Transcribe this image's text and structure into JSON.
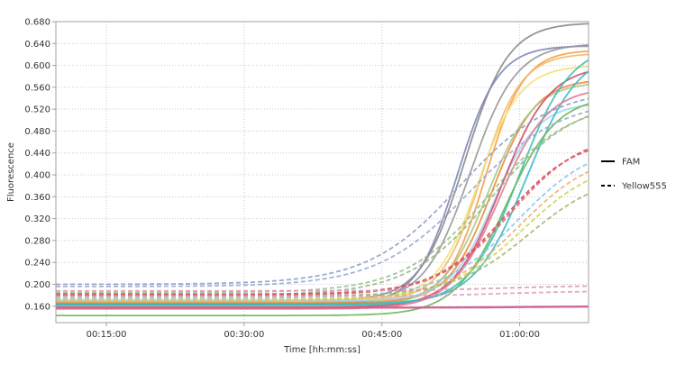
{
  "chart_data": {
    "type": "line",
    "xlabel": "Time [hh:mm:ss]",
    "ylabel": "Fluorescence",
    "ylim": [
      0.13,
      0.68
    ],
    "xlim_min": [
      9.5,
      67.5
    ],
    "grid": true,
    "legend_position": "right",
    "y_ticks": [
      "0.160",
      "0.200",
      "0.240",
      "0.280",
      "0.320",
      "0.360",
      "0.400",
      "0.440",
      "0.480",
      "0.520",
      "0.560",
      "0.600",
      "0.640",
      "0.680"
    ],
    "y_tick_values": [
      0.16,
      0.2,
      0.24,
      0.28,
      0.32,
      0.36,
      0.4,
      0.44,
      0.48,
      0.52,
      0.56,
      0.6,
      0.64,
      0.68
    ],
    "x_ticks": [
      "00:15:00",
      "00:30:00",
      "00:45:00",
      "01:00:00"
    ],
    "x_tick_minutes": [
      15,
      30,
      45,
      60
    ],
    "legend": [
      {
        "label": "FAM",
        "style": "solid"
      },
      {
        "label": "Yellow555",
        "style": "dashed"
      }
    ],
    "series": [
      {
        "group": "FAM",
        "color": "#8a8a8a",
        "base": 0.17,
        "top": 0.678,
        "mid": 54.0,
        "k": 0.42
      },
      {
        "group": "FAM",
        "color": "#8087b8",
        "base": 0.163,
        "top": 0.636,
        "mid": 53.2,
        "k": 0.45
      },
      {
        "group": "FAM",
        "color": "#999999",
        "base": 0.166,
        "top": 0.64,
        "mid": 54.6,
        "k": 0.4
      },
      {
        "group": "FAM",
        "color": "#f5a048",
        "base": 0.168,
        "top": 0.628,
        "mid": 56.3,
        "k": 0.48
      },
      {
        "group": "FAM",
        "color": "#f3b86a",
        "base": 0.17,
        "top": 0.622,
        "mid": 55.8,
        "k": 0.46
      },
      {
        "group": "FAM",
        "color": "#f5e07a",
        "base": 0.172,
        "top": 0.6,
        "mid": 55.5,
        "k": 0.44
      },
      {
        "group": "FAM",
        "color": "#f08a3a",
        "base": 0.165,
        "top": 0.575,
        "mid": 57.0,
        "k": 0.42
      },
      {
        "group": "FAM",
        "color": "#a9c98a",
        "base": 0.16,
        "top": 0.57,
        "mid": 56.5,
        "k": 0.4
      },
      {
        "group": "FAM",
        "color": "#a0d8ee",
        "base": 0.17,
        "top": 0.532,
        "mid": 57.2,
        "k": 0.42
      },
      {
        "group": "FAM",
        "color": "#d54a6a",
        "base": 0.158,
        "top": 0.6,
        "mid": 58.0,
        "k": 0.38
      },
      {
        "group": "FAM",
        "color": "#3cc0b4",
        "base": 0.162,
        "top": 0.64,
        "mid": 60.0,
        "k": 0.36
      },
      {
        "group": "FAM",
        "color": "#3bb8c8",
        "base": 0.164,
        "top": 0.63,
        "mid": 60.8,
        "k": 0.35
      },
      {
        "group": "FAM",
        "color": "#6bb85a",
        "base": 0.143,
        "top": 0.545,
        "mid": 58.5,
        "k": 0.36
      },
      {
        "group": "FAM",
        "color": "#e07a90",
        "base": 0.155,
        "top": 0.56,
        "mid": 57.8,
        "k": 0.38
      },
      {
        "group": "FAM",
        "color": "#c96aa8",
        "base": 0.158,
        "top": 0.16,
        "mid": 60.0,
        "k": 0.3
      },
      {
        "group": "FAM",
        "color": "#d45a8a",
        "base": 0.157,
        "top": 0.159,
        "mid": 60.0,
        "k": 0.3
      },
      {
        "group": "Yellow555",
        "color": "#8fa0c8",
        "base": 0.2,
        "top": 0.56,
        "mid": 53.5,
        "k": 0.2
      },
      {
        "group": "Yellow555",
        "color": "#9aaad4",
        "base": 0.196,
        "top": 0.54,
        "mid": 54.5,
        "k": 0.2
      },
      {
        "group": "Yellow555",
        "color": "#9ac090",
        "base": 0.185,
        "top": 0.535,
        "mid": 56.5,
        "k": 0.22
      },
      {
        "group": "Yellow555",
        "color": "#9ab880",
        "base": 0.18,
        "top": 0.54,
        "mid": 57.0,
        "k": 0.22
      },
      {
        "group": "Yellow555",
        "color": "#d94a5a",
        "base": 0.182,
        "top": 0.47,
        "mid": 58.5,
        "k": 0.26
      },
      {
        "group": "Yellow555",
        "color": "#e06070",
        "base": 0.18,
        "top": 0.48,
        "mid": 59.0,
        "k": 0.25
      },
      {
        "group": "Yellow555",
        "color": "#88c8e8",
        "base": 0.175,
        "top": 0.46,
        "mid": 59.8,
        "k": 0.24
      },
      {
        "group": "Yellow555",
        "color": "#f0b070",
        "base": 0.17,
        "top": 0.445,
        "mid": 60.0,
        "k": 0.24
      },
      {
        "group": "Yellow555",
        "color": "#c8d850",
        "base": 0.172,
        "top": 0.43,
        "mid": 60.4,
        "k": 0.24
      },
      {
        "group": "Yellow555",
        "color": "#a0b870",
        "base": 0.178,
        "top": 0.405,
        "mid": 61.0,
        "k": 0.24
      },
      {
        "group": "Yellow555",
        "color": "#d89ab8",
        "base": 0.188,
        "top": 0.198,
        "mid": 58.0,
        "k": 0.2
      },
      {
        "group": "Yellow555",
        "color": "#e0a0c0",
        "base": 0.178,
        "top": 0.188,
        "mid": 58.0,
        "k": 0.2
      }
    ]
  }
}
